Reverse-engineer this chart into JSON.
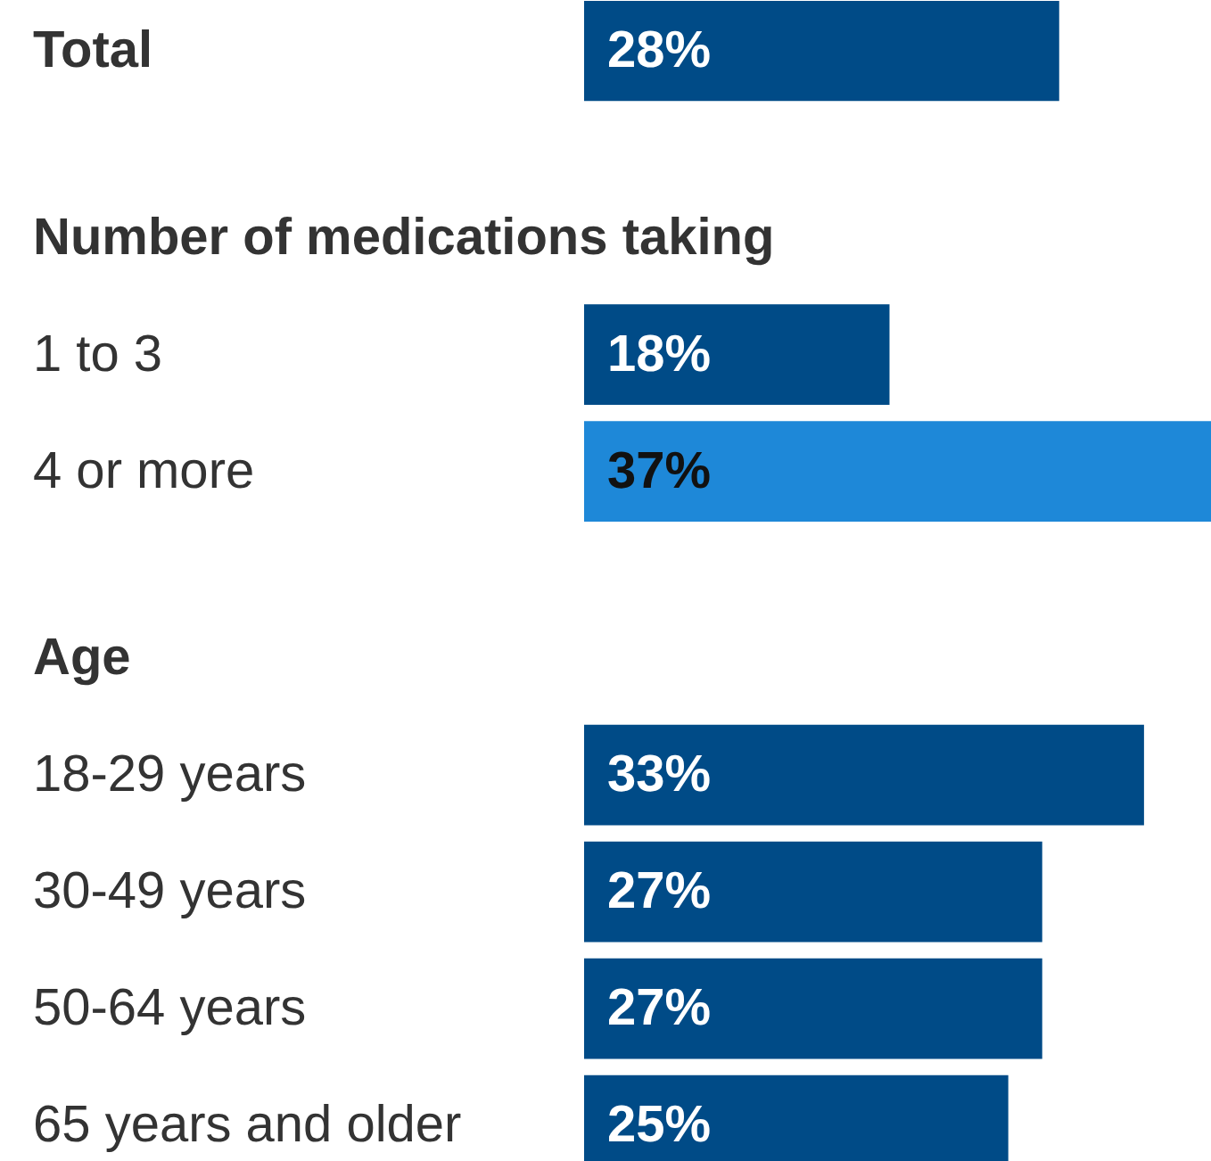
{
  "chart_data": {
    "type": "bar",
    "orientation": "horizontal",
    "categories": [
      "Total",
      "Number of medications taking",
      "1 to 3",
      "4 or more",
      "Age",
      "18-29 years",
      "30-49 years",
      "50-64 years",
      "65 years and older"
    ],
    "values": [
      28,
      null,
      18,
      37,
      null,
      33,
      27,
      27,
      25
    ],
    "value_labels": [
      "28%",
      null,
      "18%",
      "37%",
      null,
      "33%",
      "27%",
      "27%",
      "25%"
    ],
    "colors": [
      "#004b87",
      null,
      "#004b87",
      "#1e88d8",
      null,
      "#004b87",
      "#004b87",
      "#004b87",
      "#004b87"
    ],
    "grid": false
  }
}
